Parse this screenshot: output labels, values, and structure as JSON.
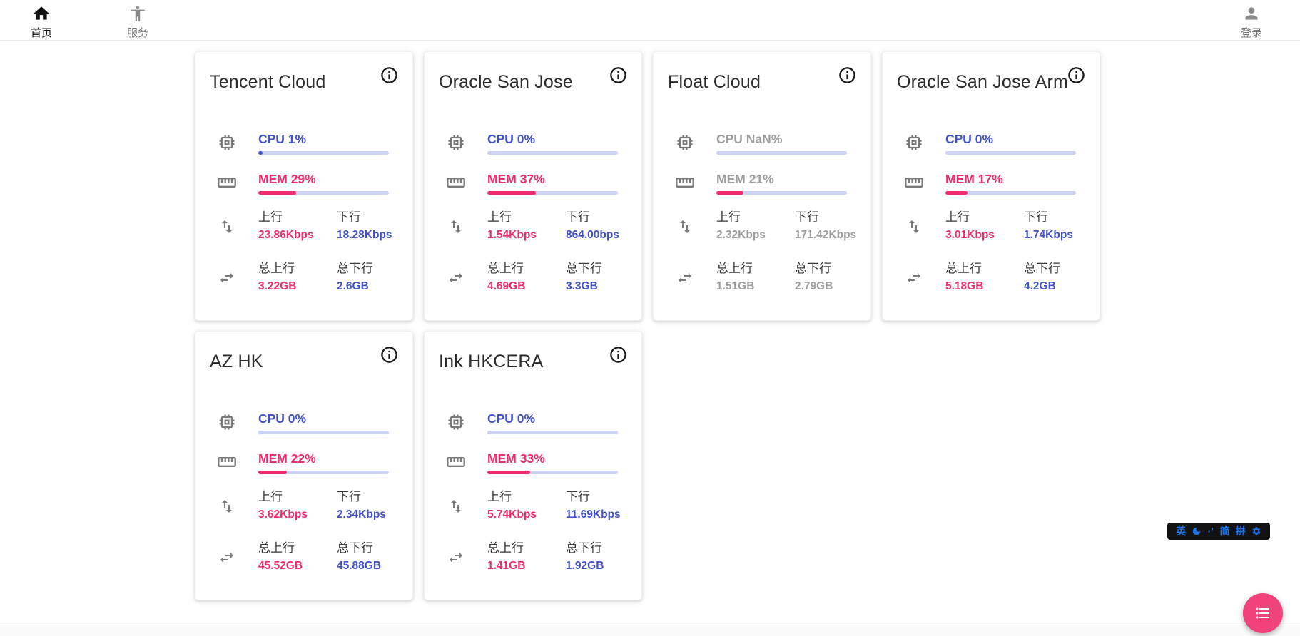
{
  "nav": {
    "home": "首页",
    "services": "服务",
    "login": "登录"
  },
  "labels": {
    "up": "上行",
    "down": "下行",
    "total_up": "总上行",
    "total_down": "总下行"
  },
  "cards": [
    {
      "title": "Tencent Cloud",
      "cpu_label": "CPU 1%",
      "cpu_pct": 1,
      "mem_label": "MEM 29%",
      "mem_pct": 29,
      "up": "23.86Kbps",
      "down": "18.28Kbps",
      "total_up": "3.22GB",
      "total_down": "2.6GB"
    },
    {
      "title": "Oracle San Jose",
      "cpu_label": "CPU 0%",
      "cpu_pct": 0,
      "mem_label": "MEM 37%",
      "mem_pct": 37,
      "up": "1.54Kbps",
      "down": "864.00bps",
      "total_up": "4.69GB",
      "total_down": "3.3GB"
    },
    {
      "title": "Float Cloud",
      "cpu_label": "CPU NaN%",
      "cpu_pct": 0,
      "mem_label": "MEM 21%",
      "mem_pct": 21,
      "up": "2.32Kbps",
      "down": "171.42Kbps",
      "total_up": "1.51GB",
      "total_down": "2.79GB",
      "muted": true
    },
    {
      "title": "Oracle San Jose Arm",
      "cpu_label": "CPU 0%",
      "cpu_pct": 0,
      "mem_label": "MEM 17%",
      "mem_pct": 17,
      "up": "3.01Kbps",
      "down": "1.74Kbps",
      "total_up": "5.18GB",
      "total_down": "4.2GB"
    },
    {
      "title": "AZ HK",
      "cpu_label": "CPU 0%",
      "cpu_pct": 0,
      "mem_label": "MEM 22%",
      "mem_pct": 22,
      "up": "3.62Kbps",
      "down": "2.34Kbps",
      "total_up": "45.52GB",
      "total_down": "45.88GB"
    },
    {
      "title": "Ink HKCERA",
      "cpu_label": "CPU 0%",
      "cpu_pct": 0,
      "mem_label": "MEM 33%",
      "mem_pct": 33,
      "up": "5.74Kbps",
      "down": "11.69Kbps",
      "total_up": "1.41GB",
      "total_down": "1.92GB"
    }
  ],
  "ime": {
    "english": "英",
    "punct": "·’",
    "simplified": "简",
    "pinyin": "拼",
    "moon_icon": "moon-icon",
    "gear_icon": "gear-icon"
  },
  "icons": {
    "nav_home": "home-icon",
    "nav_services": "accessibility-icon",
    "nav_login": "person-icon",
    "card_info": "info-icon",
    "cpu": "chip-icon",
    "mem": "ruler-icon",
    "net": "up-down-arrows-icon",
    "total": "swap-horizontal-icon",
    "fab": "list-icon"
  },
  "colors": {
    "indigo_text": "#4151c6",
    "indigo_bar": "#4053bb",
    "pink_text": "#ed2e6e",
    "pink_bar": "#ee2c6f",
    "bar_track": "#ccd3f1",
    "muted": "#9e9e9e",
    "fab": "#f0437c",
    "ime_blue": "#1a73e8"
  }
}
